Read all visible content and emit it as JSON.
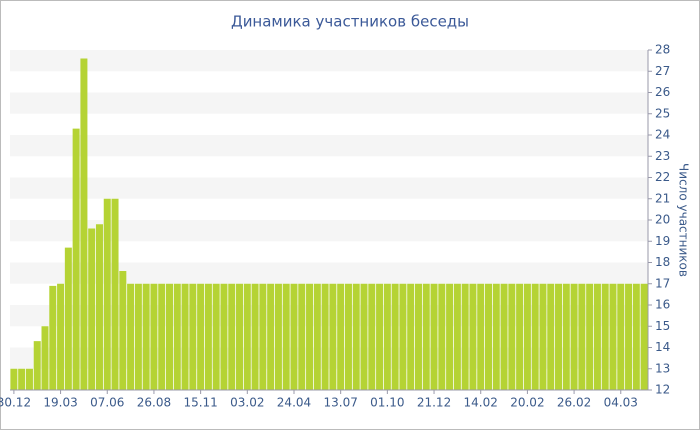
{
  "chart_data": {
    "type": "bar",
    "title": "Динамика участников беседы",
    "y_label": "Число участников",
    "categories": [
      "30.12",
      null,
      null,
      null,
      null,
      null,
      "19.03",
      null,
      null,
      null,
      null,
      null,
      "07.06",
      null,
      null,
      null,
      null,
      null,
      "26.08",
      null,
      null,
      null,
      null,
      null,
      "15.11",
      null,
      null,
      null,
      null,
      null,
      "03.02",
      null,
      null,
      null,
      null,
      null,
      "24.04",
      null,
      null,
      null,
      null,
      null,
      "13.07",
      null,
      null,
      null,
      null,
      null,
      "01.10",
      null,
      null,
      null,
      null,
      null,
      "21.12",
      null,
      null,
      null,
      null,
      null,
      "14.02",
      null,
      null,
      null,
      null,
      null,
      "20.02",
      null,
      null,
      null,
      null,
      null,
      "26.02",
      null,
      null,
      null,
      null,
      null,
      "04.03",
      null,
      null,
      null
    ],
    "values": [
      13,
      13,
      13,
      14.3,
      15,
      16.9,
      17,
      18.7,
      24.3,
      27.6,
      19.6,
      19.8,
      21,
      21,
      17.6,
      17,
      17,
      17,
      17,
      17,
      17,
      17,
      17,
      17,
      17,
      17,
      17,
      17,
      17,
      17,
      17,
      17,
      17,
      17,
      17,
      17,
      17,
      17,
      17,
      17,
      17,
      17,
      17,
      17,
      17,
      17,
      17,
      17,
      17,
      17,
      17,
      17,
      17,
      17,
      17,
      17,
      17,
      17,
      17,
      17,
      17,
      17,
      17,
      17,
      17,
      17,
      17,
      17,
      17,
      17,
      17,
      17,
      17,
      17,
      17,
      17,
      17,
      17,
      17,
      17,
      17,
      17
    ],
    "color": "#b5d334",
    "ylim": [
      12,
      28
    ],
    "yticks": [
      12,
      13,
      14,
      15,
      16,
      17,
      18,
      19,
      20,
      21,
      22,
      23,
      24,
      25,
      26,
      27,
      28
    ],
    "y_axis_side": "right",
    "bands": true
  }
}
